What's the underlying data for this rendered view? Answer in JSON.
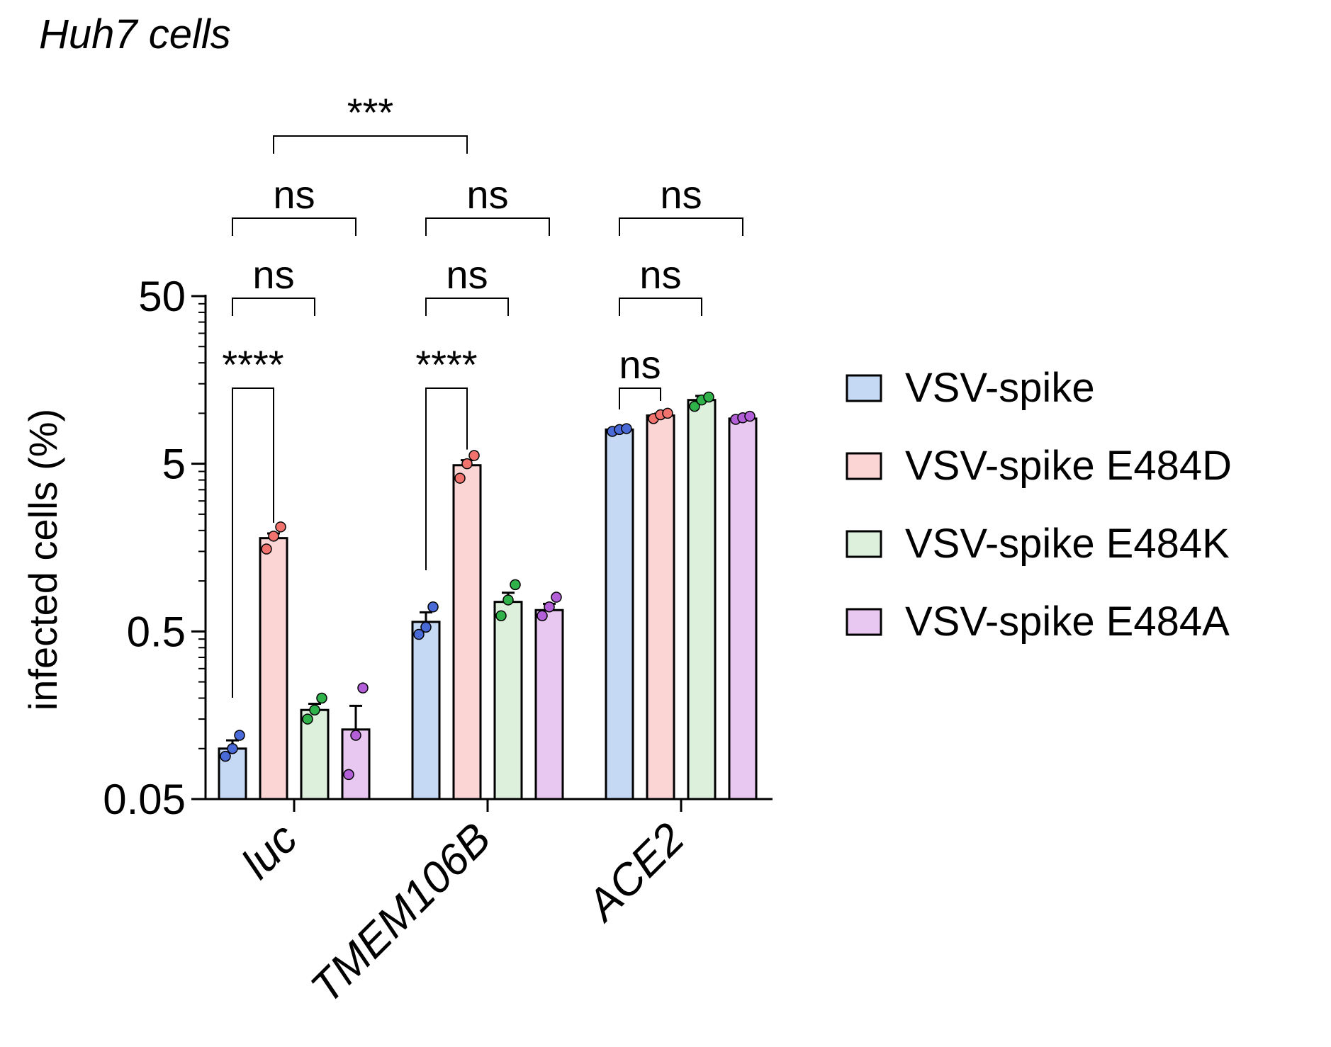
{
  "chart_data": {
    "type": "bar",
    "title": "Huh7 cells",
    "ylabel": "infected cells (%)",
    "xlabel": "",
    "yscale": "log",
    "ylim": [
      0.05,
      50
    ],
    "yticks": [
      {
        "value": 0.05,
        "label": "0.05"
      },
      {
        "value": 0.5,
        "label": "0.5"
      },
      {
        "value": 5,
        "label": "5"
      },
      {
        "value": 50,
        "label": "50"
      }
    ],
    "grid": false,
    "legend": "right",
    "categories": [
      "luc",
      "TMEM106B",
      "ACE2"
    ],
    "series": [
      {
        "name": "VSV-spike",
        "fill": "#c5d9f4",
        "dot": "#4a6ad8",
        "values": [
          0.1,
          0.57,
          8.0
        ],
        "errors": [
          0.012,
          0.08,
          0.15
        ],
        "points": [
          [
            0.09,
            0.1,
            0.12
          ],
          [
            0.48,
            0.53,
            0.7
          ],
          [
            7.8,
            8.0,
            8.1
          ]
        ]
      },
      {
        "name": "VSV-spike E484D",
        "fill": "#fbd5d3",
        "dot": "#f2736d",
        "values": [
          1.8,
          4.9,
          9.7
        ],
        "errors": [
          0.12,
          0.35,
          0.25
        ],
        "points": [
          [
            1.55,
            1.85,
            2.1
          ],
          [
            4.1,
            5.0,
            5.6
          ],
          [
            9.3,
            9.8,
            10.0
          ]
        ]
      },
      {
        "name": "VSV-spike E484K",
        "fill": "#dcf0dc",
        "dot": "#2fb24a",
        "values": [
          0.17,
          0.75,
          12.0
        ],
        "errors": [
          0.015,
          0.1,
          0.7
        ],
        "points": [
          [
            0.15,
            0.17,
            0.2
          ],
          [
            0.62,
            0.77,
            0.95
          ],
          [
            11.0,
            12.0,
            12.5
          ]
        ]
      },
      {
        "name": "VSV-spike E484A",
        "fill": "#e8c8f0",
        "dot": "#b35fd8",
        "values": [
          0.13,
          0.67,
          9.3
        ],
        "errors": [
          0.05,
          0.06,
          0.2
        ],
        "points": [
          [
            0.07,
            0.12,
            0.23
          ],
          [
            0.62,
            0.7,
            0.8
          ],
          [
            9.2,
            9.4,
            9.6
          ]
        ]
      }
    ],
    "annotations": [
      {
        "label": "****",
        "category": "luc",
        "from_series": 0,
        "to_series": 1
      },
      {
        "label": "ns",
        "category": "luc",
        "from_series": 0,
        "to_series": 2
      },
      {
        "label": "ns",
        "category": "luc",
        "from_series": 0,
        "to_series": 3
      },
      {
        "label": "****",
        "category": "TMEM106B",
        "from_series": 0,
        "to_series": 1
      },
      {
        "label": "ns",
        "category": "TMEM106B",
        "from_series": 0,
        "to_series": 2
      },
      {
        "label": "ns",
        "category": "TMEM106B",
        "from_series": 0,
        "to_series": 3
      },
      {
        "label": "ns",
        "category": "ACE2",
        "from_series": 0,
        "to_series": 1
      },
      {
        "label": "ns",
        "category": "ACE2",
        "from_series": 0,
        "to_series": 2
      },
      {
        "label": "ns",
        "category": "ACE2",
        "from_series": 0,
        "to_series": 3
      },
      {
        "label": "***",
        "category": "luc-vs-TMEM106B",
        "from_series": 1,
        "to_series": 1
      }
    ]
  }
}
